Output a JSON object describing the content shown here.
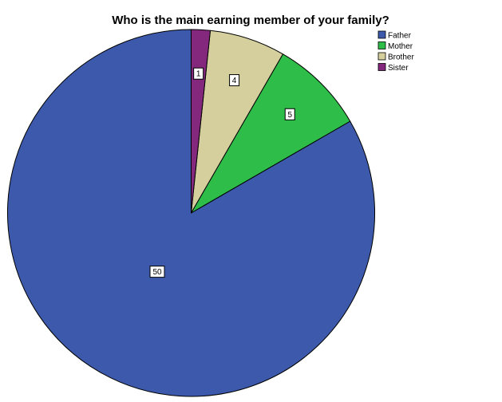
{
  "chart_data": {
    "type": "pie",
    "title": "Who is the main earning member of your family?",
    "categories": [
      "Father",
      "Mother",
      "Brother",
      "Sister"
    ],
    "values": [
      50,
      5,
      4,
      1
    ],
    "colors": [
      "#3d59ab",
      "#2ebd49",
      "#d4cf9d",
      "#84287d"
    ],
    "start": "12 o'clock",
    "direction": "counterclockwise",
    "data_labels": [
      "50",
      "5",
      "4",
      "1"
    ],
    "legend": {
      "position": "top-right",
      "entries": [
        "Father",
        "Mother",
        "Brother",
        "Sister"
      ]
    }
  }
}
